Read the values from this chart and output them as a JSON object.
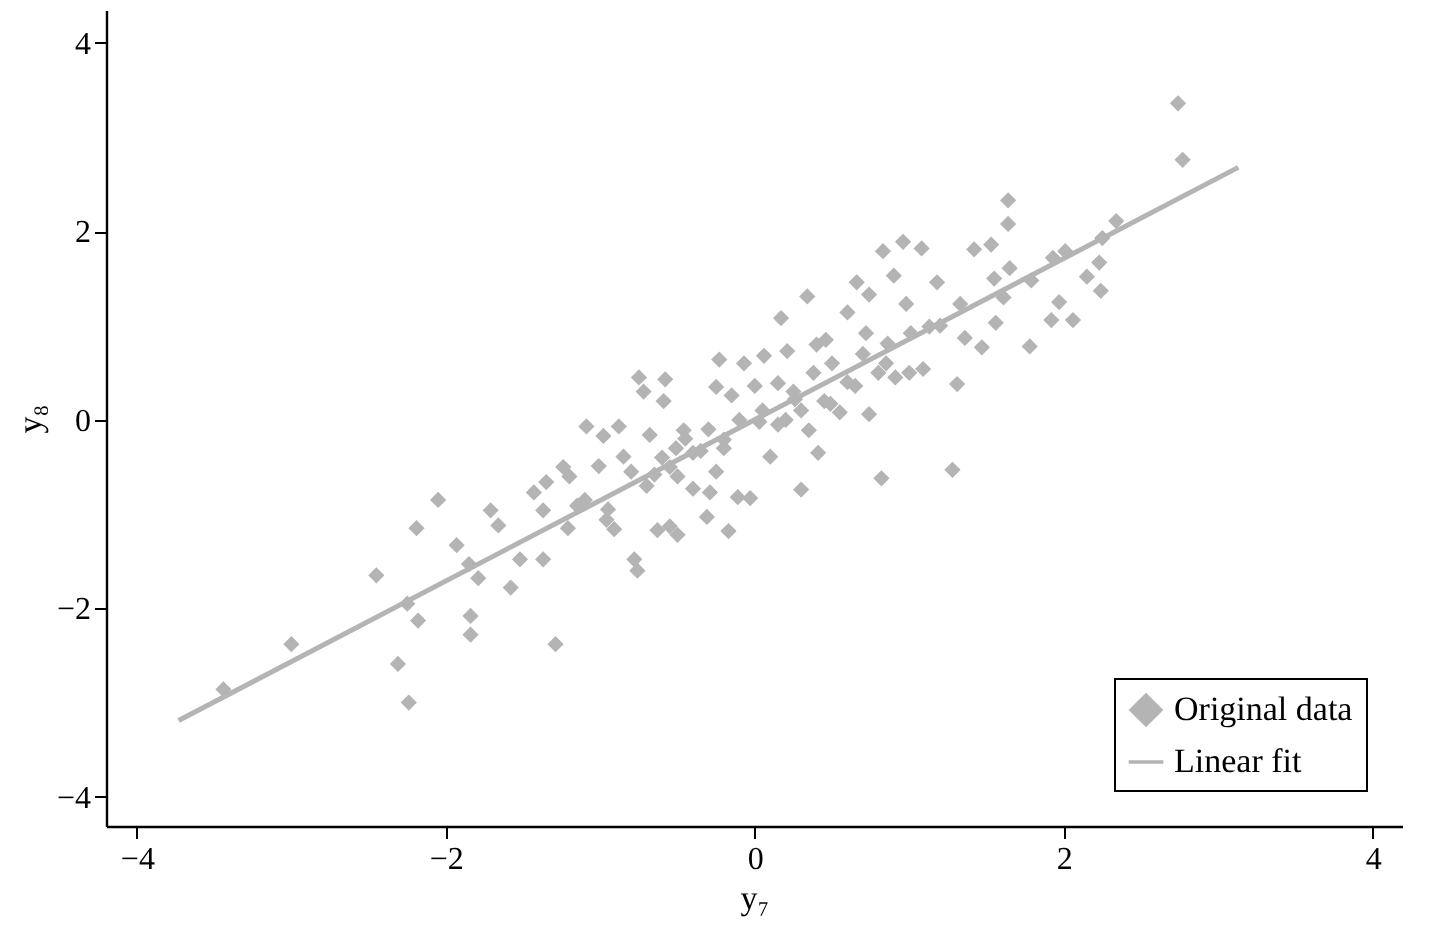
{
  "chart_data": {
    "type": "scatter",
    "xlabel": "y₇",
    "ylabel": "y₈",
    "xlim": [
      -4.2,
      4.19
    ],
    "ylim": [
      -4.31,
      4.35
    ],
    "xticks": [
      -4,
      -2,
      0,
      2,
      4
    ],
    "yticks": [
      -4,
      -2,
      0,
      2,
      4
    ],
    "grid": false,
    "legend": "bottom right",
    "series": [
      {
        "name": "Original data",
        "type": "scatter",
        "marker": "diamond",
        "color": "#b4b4b4",
        "x": [
          -3.44,
          -3.0,
          -2.45,
          -2.25,
          -2.31,
          -2.24,
          -2.19,
          -2.18,
          -2.05,
          -1.93,
          -1.85,
          -1.84,
          -1.84,
          -1.79,
          -1.71,
          -1.66,
          -1.58,
          -1.52,
          -1.43,
          -1.37,
          -1.37,
          -1.29,
          -1.35,
          -1.24,
          -1.21,
          -1.15,
          -1.09,
          -0.98,
          -1.01,
          -0.96,
          -0.91,
          -0.85,
          -0.88,
          -0.78,
          -0.76,
          -0.75,
          -0.72,
          -0.68,
          -0.65,
          -0.63,
          -0.58,
          -0.59,
          -0.55,
          -0.51,
          -0.5,
          -0.46,
          -0.4,
          -0.35,
          -0.29,
          -0.23,
          -0.25,
          -0.31,
          -0.2,
          -0.17,
          -0.15,
          -0.11,
          -0.07,
          -0.03,
          0,
          0.03,
          0.06,
          0.1,
          0.15,
          0.17,
          0.21,
          0.26,
          0.3,
          0.34,
          0.35,
          0.38,
          0.41,
          0.46,
          0.49,
          0.55,
          0.6,
          0.66,
          0.65,
          0.72,
          0.74,
          0.74,
          0.82,
          0.83,
          0.86,
          0.9,
          0.91,
          0.96,
          0.98,
          1.01,
          1.08,
          1.09,
          1.13,
          1.18,
          1.28,
          1.31,
          1.33,
          1.36,
          1.42,
          1.47,
          1.53,
          1.55,
          1.56,
          1.61,
          1.64,
          1.64,
          1.65,
          1.78,
          1.79,
          1.92,
          1.93,
          1.97,
          2.01,
          2.06,
          2.15,
          2.24,
          2.23,
          2.25,
          2.34,
          2.74,
          2.77,
          -0.6,
          -0.55,
          -0.5,
          -0.45,
          -0.4,
          -0.3,
          -0.2,
          -0.1,
          0.05,
          0.15,
          0.25,
          0.3,
          0.45,
          0.5,
          0.6,
          0.7,
          0.8,
          0.85,
          -0.8,
          -0.7,
          -1.1,
          -1.2,
          -0.95,
          0.4,
          1.0,
          1.2,
          0.2,
          -0.25
        ],
        "values": [
          -2.86,
          -2.38,
          -1.65,
          -1.95,
          -2.59,
          -3.0,
          -1.15,
          -2.13,
          -0.85,
          -1.33,
          -1.53,
          -2.08,
          -2.28,
          -1.68,
          -0.96,
          -1.12,
          -1.78,
          -1.48,
          -0.77,
          -0.96,
          -1.48,
          -2.38,
          -0.66,
          -0.5,
          -1.15,
          -0.91,
          -0.07,
          -0.17,
          -0.49,
          -1.06,
          -1.16,
          -0.39,
          -0.07,
          -1.48,
          -1.6,
          0.45,
          0.3,
          -0.16,
          -0.58,
          -1.17,
          0.43,
          0.2,
          -1.13,
          -0.3,
          -1.22,
          -0.11,
          -0.73,
          -0.33,
          -0.77,
          0.64,
          0.35,
          -1.03,
          -0.21,
          -1.18,
          0.26,
          -0.82,
          0.6,
          -0.83,
          0.36,
          -0.02,
          0.68,
          -0.39,
          0.39,
          1.08,
          0.73,
          0.22,
          -0.74,
          1.31,
          -0.11,
          0.5,
          -0.35,
          0.85,
          0.17,
          0.08,
          1.14,
          1.46,
          0.36,
          0.92,
          1.33,
          0.06,
          -0.62,
          1.79,
          0.81,
          1.53,
          0.45,
          1.89,
          1.23,
          0.92,
          1.82,
          0.54,
          0.99,
          1.46,
          -0.53,
          0.38,
          1.23,
          0.87,
          1.81,
          0.77,
          1.86,
          1.5,
          1.03,
          1.3,
          2.33,
          2.08,
          1.61,
          0.78,
          1.48,
          1.06,
          1.72,
          1.25,
          1.79,
          1.06,
          1.52,
          1.37,
          1.67,
          1.93,
          2.11,
          3.36,
          2.76,
          -0.4,
          -0.5,
          -0.6,
          -0.2,
          -0.35,
          -0.1,
          -0.3,
          0.0,
          0.1,
          -0.05,
          0.3,
          0.1,
          0.2,
          0.6,
          0.4,
          0.7,
          0.5,
          0.6,
          -0.55,
          -0.7,
          -0.85,
          -0.6,
          -0.95,
          0.8,
          0.5,
          1.0,
          0.0,
          -0.55
        ]
      },
      {
        "name": "Linear fit",
        "type": "line",
        "line_style": "solid",
        "color": "#b4b4b4",
        "x": [
          -3.73,
          3.13
        ],
        "values": [
          -3.19,
          2.68
        ]
      }
    ]
  }
}
